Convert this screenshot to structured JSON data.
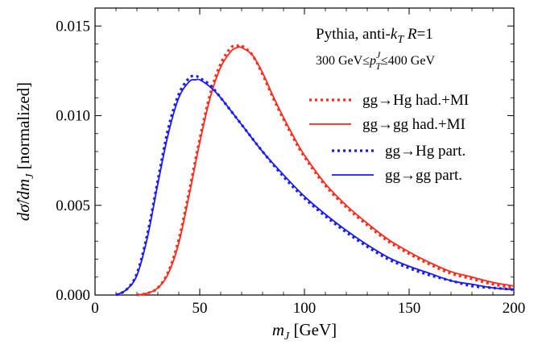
{
  "chart_data": {
    "type": "line",
    "title": "",
    "xlabel": "m_J [GeV]",
    "ylabel": "dσ̂/dm_J [normalized]",
    "xlim": [
      0,
      200
    ],
    "ylim": [
      0,
      0.016
    ],
    "xticks": [
      0,
      50,
      100,
      150,
      200
    ],
    "xtick_labels": [
      "0",
      "50",
      "100",
      "150",
      "200"
    ],
    "yticks": [
      0,
      0.005,
      0.01,
      0.015
    ],
    "ytick_labels": [
      "0.000",
      "0.005",
      "0.010",
      "0.015"
    ],
    "grid": false,
    "legend_position": "right",
    "annotations": [
      "Pythia, anti-k_T R=1",
      "300 GeV≤p_T^J≤400 GeV"
    ],
    "series": [
      {
        "name": "gg→Hg had.+MI",
        "color": "#ff2a1a",
        "dash": "dotted",
        "x": [
          20,
          25,
          30,
          35,
          40,
          45,
          50,
          55,
          60,
          65,
          68,
          70,
          75,
          80,
          85,
          90,
          95,
          100,
          110,
          120,
          130,
          140,
          150,
          160,
          170,
          180,
          190,
          200
        ],
        "y": [
          0.0,
          0.0001,
          0.0004,
          0.0013,
          0.0031,
          0.0058,
          0.0087,
          0.0112,
          0.0129,
          0.0138,
          0.0139,
          0.0139,
          0.0134,
          0.0123,
          0.011,
          0.0098,
          0.0087,
          0.0077,
          0.0061,
          0.0049,
          0.0039,
          0.003,
          0.0023,
          0.0017,
          0.0012,
          0.0009,
          0.0006,
          0.0004
        ]
      },
      {
        "name": "gg→gg had.+MI",
        "color": "#ff2a1a",
        "dash": "solid",
        "x": [
          20,
          25,
          30,
          35,
          40,
          45,
          50,
          55,
          60,
          65,
          68,
          70,
          75,
          80,
          85,
          90,
          95,
          100,
          110,
          120,
          130,
          140,
          150,
          160,
          170,
          180,
          190,
          200
        ],
        "y": [
          0.0,
          0.0001,
          0.0004,
          0.0012,
          0.0029,
          0.0056,
          0.0085,
          0.011,
          0.0127,
          0.0136,
          0.0138,
          0.0138,
          0.0134,
          0.0124,
          0.0111,
          0.0099,
          0.0088,
          0.0078,
          0.0062,
          0.005,
          0.004,
          0.0031,
          0.0024,
          0.0018,
          0.0013,
          0.001,
          0.0007,
          0.0005
        ]
      },
      {
        "name": "gg→Hg part.",
        "color": "#1a1aff",
        "dash": "dotted",
        "x": [
          10,
          15,
          20,
          25,
          30,
          35,
          40,
          45,
          48,
          50,
          55,
          60,
          70,
          80,
          90,
          100,
          110,
          120,
          130,
          140,
          150,
          160,
          170,
          180,
          190,
          200
        ],
        "y": [
          0.0,
          0.0003,
          0.0012,
          0.0034,
          0.0064,
          0.0093,
          0.0112,
          0.0121,
          0.0122,
          0.0121,
          0.0117,
          0.011,
          0.0095,
          0.008,
          0.0066,
          0.0054,
          0.0044,
          0.0035,
          0.0027,
          0.002,
          0.0015,
          0.0011,
          0.0008,
          0.0005,
          0.0004,
          0.0003
        ]
      },
      {
        "name": "gg→gg part.",
        "color": "#1a1aff",
        "dash": "solid",
        "x": [
          10,
          15,
          20,
          25,
          30,
          35,
          40,
          45,
          48,
          50,
          55,
          60,
          70,
          80,
          90,
          100,
          110,
          120,
          130,
          140,
          150,
          160,
          170,
          180,
          190,
          200
        ],
        "y": [
          0.0,
          0.0003,
          0.0011,
          0.0032,
          0.0062,
          0.009,
          0.011,
          0.0119,
          0.012,
          0.012,
          0.0116,
          0.011,
          0.0095,
          0.008,
          0.0067,
          0.0055,
          0.0045,
          0.0036,
          0.0028,
          0.0021,
          0.0016,
          0.0012,
          0.0008,
          0.0006,
          0.0004,
          0.0003
        ]
      }
    ]
  }
}
